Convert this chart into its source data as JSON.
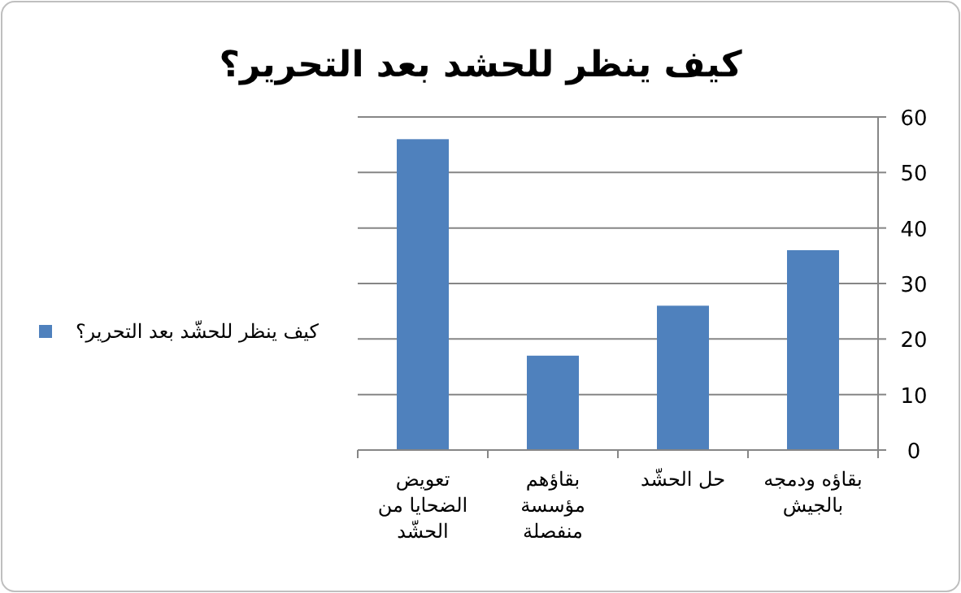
{
  "chart_data": {
    "type": "bar",
    "title": "كيف ينظر للحشد بعد التحرير؟",
    "categories": [
      "تعويض الضحايا من الحشّد",
      "بقاؤهم مؤسسة منفصلة",
      "حل الحشّد",
      "بقاؤه ودمجه بالجيش"
    ],
    "series": [
      {
        "name": "كيف ينظر للحشّد بعد التحرير؟",
        "color": "#4f81bd",
        "values": [
          56,
          17,
          26,
          36
        ]
      }
    ],
    "ylim": [
      0,
      60
    ],
    "yticks": [
      0,
      10,
      20,
      30,
      40,
      50,
      60
    ],
    "grid": "y",
    "legend": "left"
  }
}
